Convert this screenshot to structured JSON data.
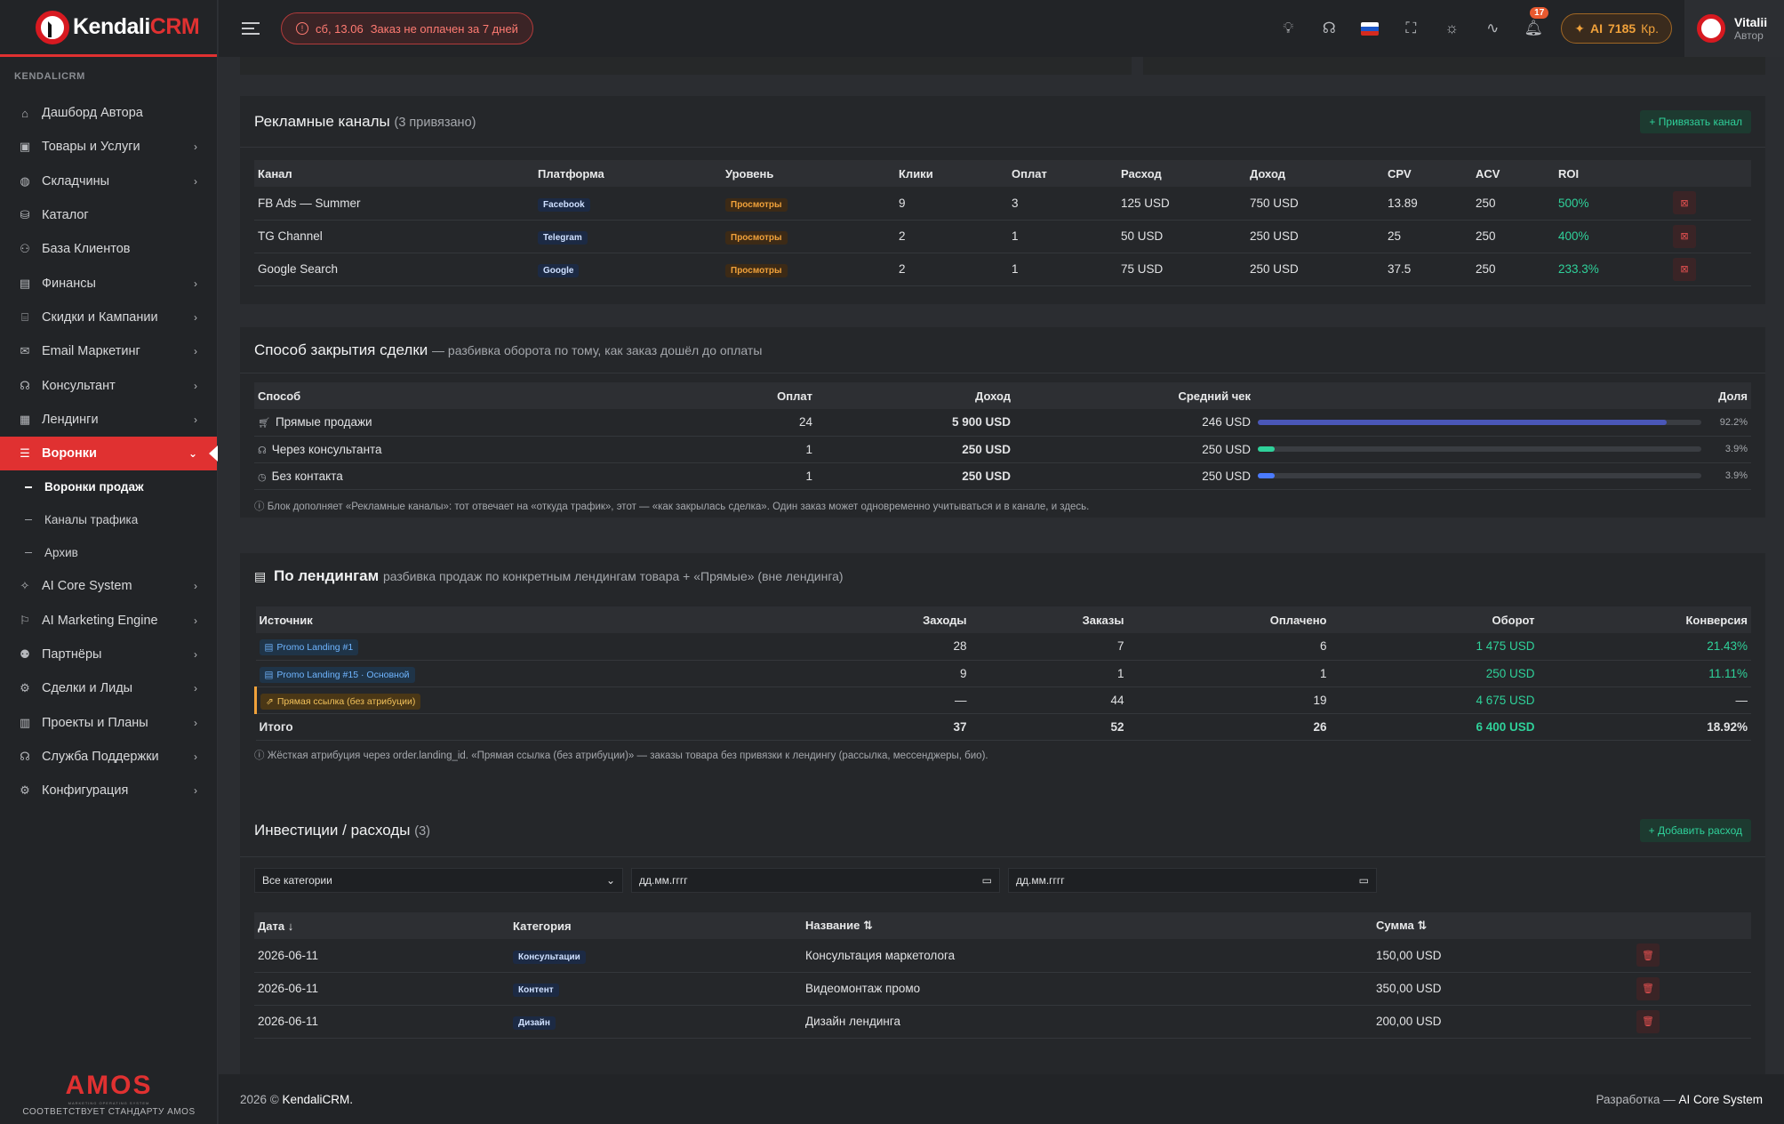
{
  "sidebar": {
    "brand_main": "Kendali",
    "brand_accent": "CRM",
    "caption": "KENDALICRM",
    "items": [
      {
        "label": "Дашборд Автора",
        "has_sub": false
      },
      {
        "label": "Товары и Услуги",
        "has_sub": true
      },
      {
        "label": "Складчины",
        "has_sub": true
      },
      {
        "label": "Каталог",
        "has_sub": false
      },
      {
        "label": "База Клиентов",
        "has_sub": false
      },
      {
        "label": "Финансы",
        "has_sub": true
      },
      {
        "label": "Скидки и Кампании",
        "has_sub": true
      },
      {
        "label": "Email Маркетинг",
        "has_sub": true
      },
      {
        "label": "Консультант",
        "has_sub": true
      },
      {
        "label": "Лендинги",
        "has_sub": true
      },
      {
        "label": "Воронки",
        "has_sub": true
      }
    ],
    "sub_items": [
      "Воронки продаж",
      "Каналы трафика",
      "Архив"
    ],
    "items_after": [
      {
        "label": "AI Core System"
      },
      {
        "label": "AI Marketing Engine"
      },
      {
        "label": "Партнёры"
      },
      {
        "label": "Сделки и Лиды"
      },
      {
        "label": "Проекты и Планы"
      },
      {
        "label": "Служба Поддержки"
      },
      {
        "label": "Конфигурация"
      }
    ],
    "amos_main": "AMOS",
    "amos_small": "MARKETING OPERATING SYSTEM",
    "amos_tag": "СООТВЕТСТВУЕТ СТАНДАРТУ AMOS"
  },
  "topbar": {
    "alert_date": "сб, 13.06",
    "alert_text": "Заказ не оплачен за 7 дней",
    "notifications": "17",
    "ai_label": "AI",
    "ai_amount": "7185",
    "ai_unit": "Кр.",
    "user_name": "Vitalii",
    "user_role": "Автор"
  },
  "ads": {
    "title": "Рекламные каналы",
    "count": "(3 привязано)",
    "bind_button": "+ Привязать канал",
    "columns": [
      "Канал",
      "Платформа",
      "Уровень",
      "Клики",
      "Оплат",
      "Расход",
      "Доход",
      "CPV",
      "ACV",
      "ROI"
    ],
    "rows": [
      {
        "name": "FB Ads — Summer",
        "platform": "Facebook",
        "level": "Просмотры",
        "clicks": "9",
        "paid": "3",
        "spend": "125 USD",
        "income": "750 USD",
        "cpv": "13.89",
        "acv": "250",
        "roi": "500%"
      },
      {
        "name": "TG Channel",
        "platform": "Telegram",
        "level": "Просмотры",
        "clicks": "2",
        "paid": "1",
        "spend": "50 USD",
        "income": "250 USD",
        "cpv": "25",
        "acv": "250",
        "roi": "400%"
      },
      {
        "name": "Google Search",
        "platform": "Google",
        "level": "Просмотры",
        "clicks": "2",
        "paid": "1",
        "spend": "75 USD",
        "income": "250 USD",
        "cpv": "37.5",
        "acv": "250",
        "roi": "233.3%"
      }
    ]
  },
  "closing": {
    "title": "Способ закрытия сделки",
    "subtitle": "— разбивка оборота по тому, как заказ дошёл до оплаты",
    "columns": [
      "Способ",
      "Оплат",
      "Доход",
      "Средний чек",
      "Доля"
    ],
    "rows": [
      {
        "method": "Прямые продажи",
        "icon": "cart-icon",
        "paid": "24",
        "income": "5 900 USD",
        "avg": "246 USD",
        "share": "92.2%",
        "share_value": 0.922,
        "color": "#4a57b8"
      },
      {
        "method": "Через консультанта",
        "icon": "headset-icon",
        "paid": "1",
        "income": "250 USD",
        "avg": "250 USD",
        "share": "3.9%",
        "share_value": 0.039,
        "color": "#2fd19a"
      },
      {
        "method": "Без контакта",
        "icon": "clock-icon",
        "paid": "1",
        "income": "250 USD",
        "avg": "250 USD",
        "share": "3.9%",
        "share_value": 0.039,
        "color": "#4b7bff"
      }
    ],
    "note": "ⓘ Блок дополняет «Рекламные каналы»: тот отвечает на «откуда трафик», этот — «как закрылась сделка». Один заказ может одновременно учитываться и в канале, и здесь."
  },
  "landings": {
    "title": "По лендингам",
    "subtitle": "разбивка продаж по конкретным лендингам товара + «Прямые» (вне лендинга)",
    "columns": [
      "Источник",
      "Заходы",
      "Заказы",
      "Оплачено",
      "Оборот",
      "Конверсия"
    ],
    "rows": [
      {
        "source": "Promo Landing #1",
        "visits": "28",
        "orders": "7",
        "paid": "6",
        "turnover": "1 475 USD",
        "conv": "21.43%",
        "direct": false
      },
      {
        "source": "Promo Landing #15 · Основной",
        "visits": "9",
        "orders": "1",
        "paid": "1",
        "turnover": "250 USD",
        "conv": "11.11%",
        "direct": false
      },
      {
        "source": "Прямая ссылка (без атрибуции)",
        "visits": "—",
        "orders": "44",
        "paid": "19",
        "turnover": "4 675 USD",
        "conv": "—",
        "direct": true
      }
    ],
    "total": {
      "label": "Итого",
      "visits": "37",
      "orders": "52",
      "paid": "26",
      "turnover": "6 400 USD",
      "conv": "18.92%"
    },
    "note": "ⓘ Жёсткая атрибуция через order.landing_id. «Прямая ссылка (без атрибуции)» — заказы товара без привязки к лендингу (рассылка, мессенджеры, био)."
  },
  "invest": {
    "title": "Инвестиции / расходы",
    "count": "(3)",
    "add_button": "+ Добавить расход",
    "category_filter": "Все категории",
    "date_from_placeholder": "дд.мм.гггг",
    "date_to_placeholder": "дд.мм.гггг",
    "columns": [
      "Дата ↓",
      "Категория",
      "Название ⇅",
      "Сумма ⇅"
    ],
    "rows": [
      {
        "date": "2026-06-11",
        "category": "Консультации",
        "name": "Консультация маркетолога",
        "sum": "150,00 USD"
      },
      {
        "date": "2026-06-11",
        "category": "Контент",
        "name": "Видеомонтаж промо",
        "sum": "350,00 USD"
      },
      {
        "date": "2026-06-11",
        "category": "Дизайн",
        "name": "Дизайн лендинга",
        "sum": "200,00 USD"
      }
    ]
  },
  "footer": {
    "copyright_prefix": "2026 ©",
    "copyright_brand": "KendaliCRM.",
    "dev_prefix": "Разработка —",
    "dev_brand": "AI Core System"
  }
}
